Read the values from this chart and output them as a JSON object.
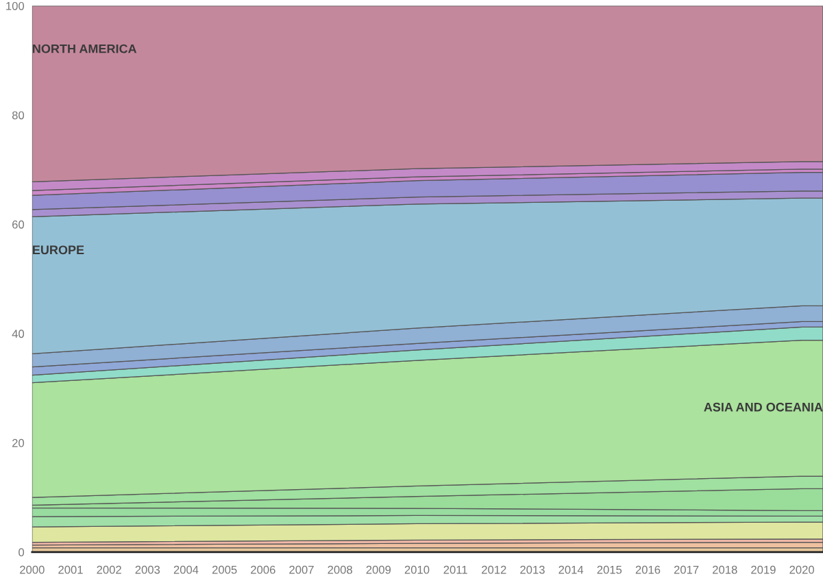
{
  "chart_data": {
    "type": "area",
    "stacked": true,
    "x": [
      2000,
      2010,
      2020,
      2020.55
    ],
    "xlim": [
      2000,
      2020.55
    ],
    "ylim": [
      0,
      100
    ],
    "xticks": [
      2000,
      2001,
      2002,
      2003,
      2004,
      2005,
      2006,
      2007,
      2008,
      2009,
      2010,
      2011,
      2012,
      2013,
      2014,
      2015,
      2016,
      2017,
      2018,
      2019,
      2020
    ],
    "yticks": [
      0,
      20,
      40,
      60,
      80,
      100
    ],
    "grid": false,
    "series": [
      {
        "color": "#e8c89c",
        "values": [
          0.8,
          0.8,
          0.8,
          0.8
        ]
      },
      {
        "color": "#efc0a0",
        "values": [
          0.5,
          0.8,
          1,
          1
        ]
      },
      {
        "color": "#f0b8a8",
        "values": [
          0.5,
          0.6,
          0.6,
          0.6
        ]
      },
      {
        "color": "#dfe6a0",
        "values": [
          2.8,
          3,
          3.1,
          3.1
        ]
      },
      {
        "color": "#a0e0a8",
        "values": [
          1.9,
          1.5,
          1.1,
          1.1
        ]
      },
      {
        "color": "#98dca0",
        "values": [
          1.6,
          1.3,
          1,
          1
        ]
      },
      {
        "color": "#9adc9a",
        "values": [
          0.5,
          2.2,
          4,
          4
        ]
      },
      {
        "color": "#a0e0a0",
        "values": [
          1.4,
          1.9,
          2.3,
          2.3
        ]
      },
      {
        "name": "ASIA AND OCEANIA",
        "color": "#abe29e",
        "values": [
          21,
          23,
          24.9,
          24.9
        ]
      },
      {
        "color": "#90dcc8",
        "values": [
          1.4,
          1.9,
          2.4,
          2.4
        ]
      },
      {
        "color": "#90a8d8",
        "values": [
          1.5,
          1.2,
          1,
          1
        ]
      },
      {
        "color": "#90b0d4",
        "values": [
          2.4,
          2.8,
          2.9,
          2.9
        ]
      },
      {
        "name": "EUROPE",
        "color": "#94c0d6",
        "values": [
          25.1,
          22.7,
          19.7,
          19.7
        ]
      },
      {
        "color": "#a890d0",
        "values": [
          1.3,
          1.3,
          1.3,
          1.3
        ]
      },
      {
        "color": "#9690d0",
        "values": [
          2.6,
          3,
          3.4,
          3.4
        ]
      },
      {
        "color": "#cc88c8",
        "values": [
          0.9,
          0.7,
          0.6,
          0.6
        ]
      },
      {
        "color": "#c48ac8",
        "values": [
          1.6,
          1.5,
          1.4,
          1.4
        ]
      },
      {
        "name": "NORTH AMERICA",
        "color": "#c4889c",
        "values": [
          32.2,
          29.8,
          28.5,
          28.5
        ]
      }
    ]
  }
}
